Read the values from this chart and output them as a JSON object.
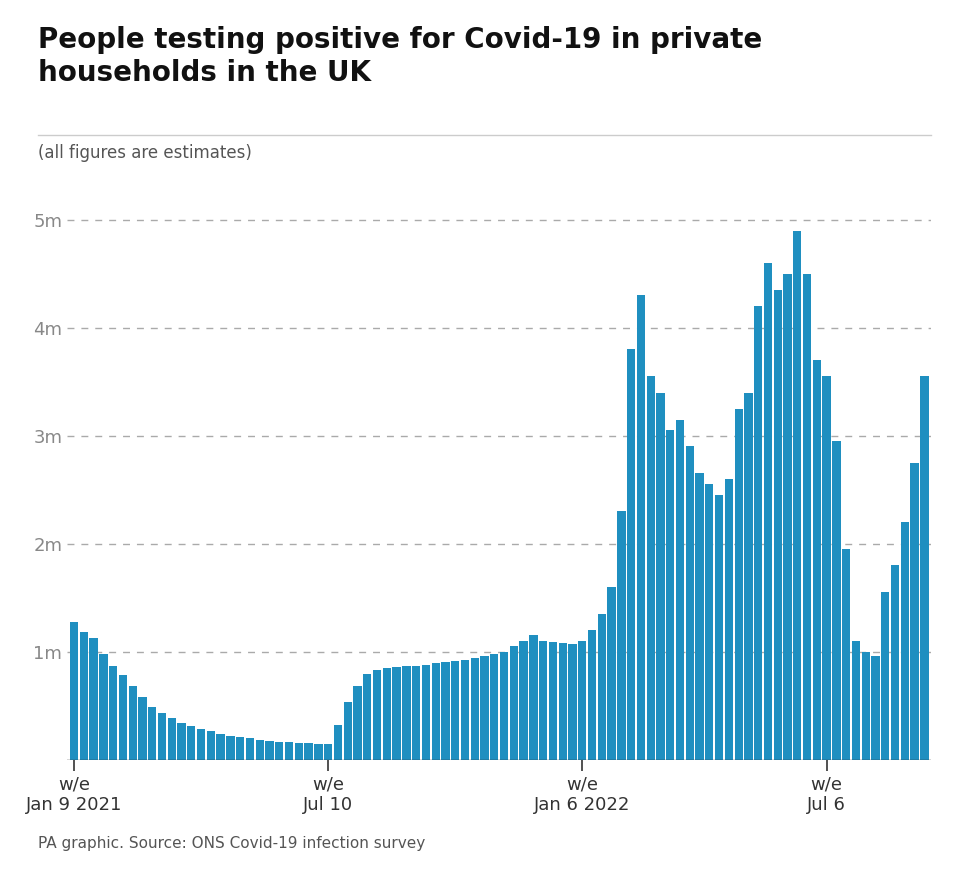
{
  "title": "People testing positive for Covid-19 in private\nhouseholds in the UK",
  "subtitle": "(all figures are estimates)",
  "source": "PA graphic. Source: ONS Covid-19 infection survey",
  "bar_color": "#1f8fc0",
  "background_color": "#ffffff",
  "ylim": [
    0,
    5500000
  ],
  "yticks": [
    0,
    1000000,
    2000000,
    3000000,
    4000000,
    5000000
  ],
  "ytick_labels": [
    "",
    "1m",
    "2m",
    "3m",
    "4m",
    "5m"
  ],
  "xtick_positions": [
    0,
    26,
    52,
    77
  ],
  "xtick_labels": [
    "w/e\nJan 9 2021",
    "w/e\nJul 10",
    "w/e\nJan 6 2022",
    "w/e\nJul 6"
  ],
  "values": [
    1270000,
    1180000,
    1130000,
    980000,
    870000,
    780000,
    680000,
    580000,
    490000,
    430000,
    380000,
    340000,
    310000,
    280000,
    260000,
    240000,
    220000,
    210000,
    200000,
    185000,
    175000,
    165000,
    160000,
    155000,
    150000,
    145000,
    145000,
    320000,
    530000,
    680000,
    790000,
    830000,
    850000,
    860000,
    870000,
    870000,
    880000,
    890000,
    900000,
    910000,
    920000,
    940000,
    960000,
    980000,
    1000000,
    1050000,
    1100000,
    1150000,
    1100000,
    1090000,
    1080000,
    1070000,
    1100000,
    1200000,
    1350000,
    1600000,
    2300000,
    3800000,
    4300000,
    3550000,
    3400000,
    3050000,
    3150000,
    2900000,
    2650000,
    2550000,
    2450000,
    2600000,
    3250000,
    3400000,
    4200000,
    4600000,
    4350000,
    4500000,
    4900000,
    4500000,
    3700000,
    3550000,
    2950000,
    1950000,
    1100000,
    1000000,
    960000,
    1550000,
    1800000,
    2200000,
    2750000,
    3550000
  ]
}
